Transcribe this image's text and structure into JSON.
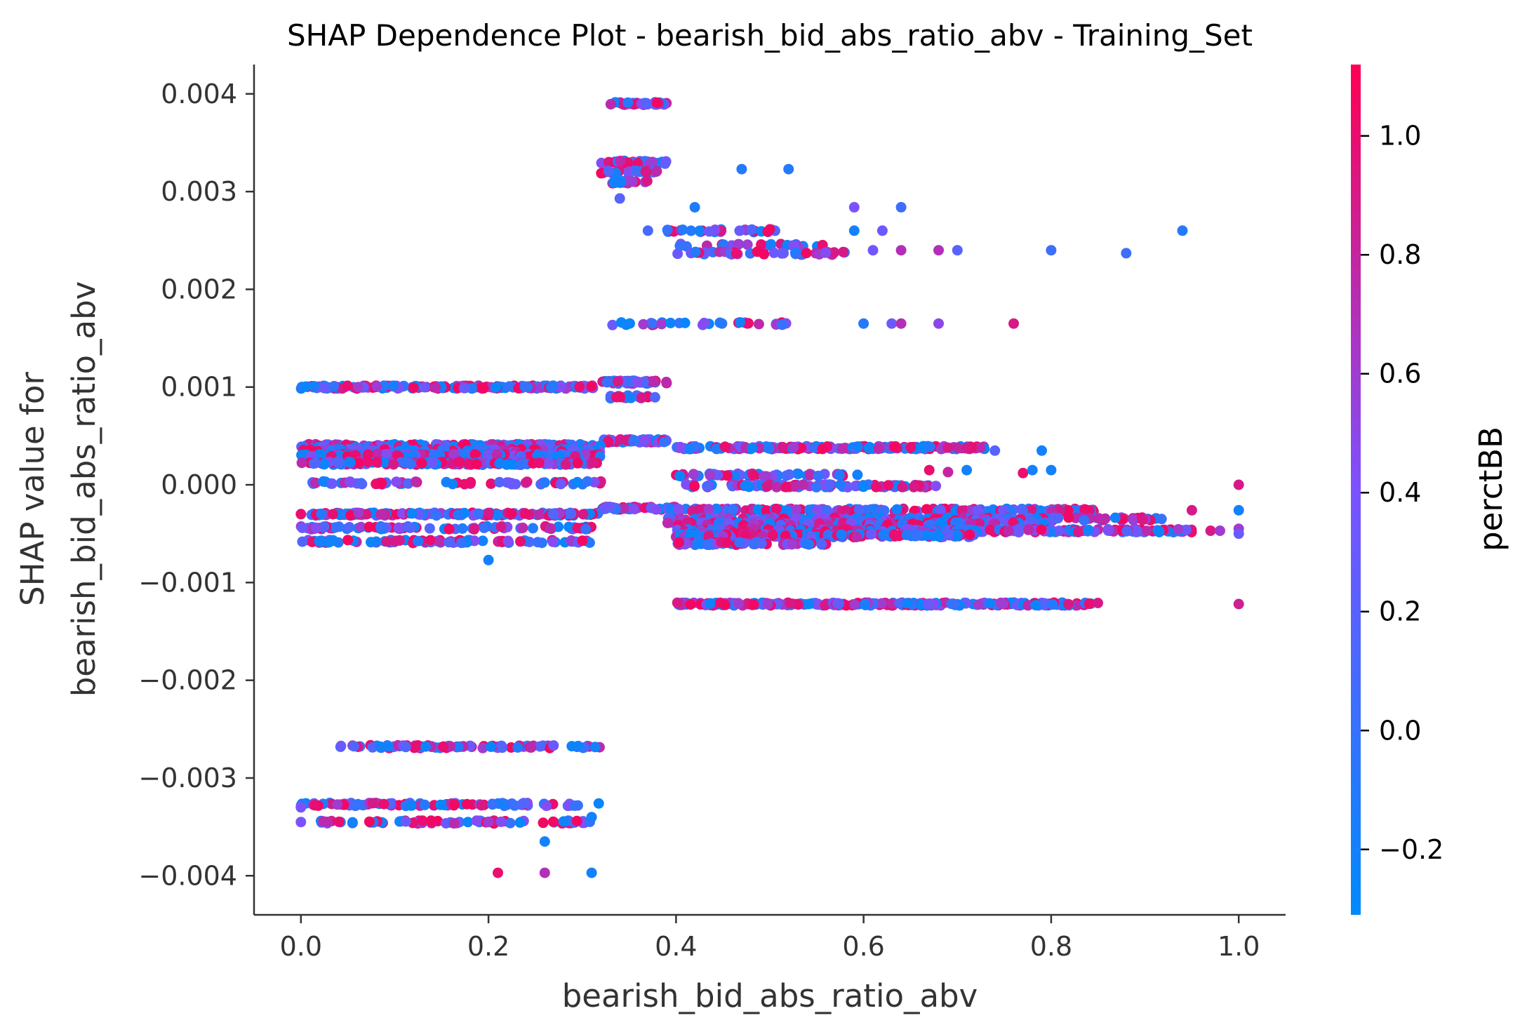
{
  "chart_data": {
    "type": "scatter",
    "title": "SHAP Dependence Plot - bearish_bid_abs_ratio_abv - Training_Set",
    "xlabel": "bearish_bid_abs_ratio_abv",
    "ylabel_lines": [
      "SHAP value for",
      "bearish_bid_abs_ratio_abv"
    ],
    "xlim": [
      -0.05,
      1.05
    ],
    "ylim": [
      -0.0044,
      0.0043
    ],
    "x_ticks": [
      0.0,
      0.2,
      0.4,
      0.6,
      0.8,
      1.0
    ],
    "x_tick_labels": [
      "0.0",
      "0.2",
      "0.4",
      "0.6",
      "0.8",
      "1.0"
    ],
    "y_ticks": [
      0.004,
      0.003,
      0.002,
      0.001,
      0.0,
      -0.001,
      -0.002,
      -0.003,
      -0.004
    ],
    "y_tick_labels": [
      "0.004",
      "0.003",
      "0.002",
      "0.001",
      "0.000",
      "−0.001",
      "−0.002",
      "−0.003",
      "−0.004"
    ],
    "colorbar": {
      "label": "perctBB",
      "range": [
        -0.31,
        1.12
      ],
      "ticks": [
        1.0,
        0.8,
        0.6,
        0.4,
        0.2,
        0.0,
        -0.2
      ],
      "tick_labels": [
        "1.0",
        "0.8",
        "0.6",
        "0.4",
        "0.2",
        "0.0",
        "−0.2"
      ],
      "color_low": "#008afb",
      "color_mid": "#7c52ff",
      "color_high": "#ff0052"
    },
    "grid": false,
    "legend": "colorbar-right",
    "bands": [
      {
        "x_start": 0.33,
        "x_end": 0.39,
        "y": 0.0039,
        "count": 40
      },
      {
        "x_start": 0.32,
        "x_end": 0.39,
        "y": 0.0033,
        "count": 40
      },
      {
        "x_start": 0.32,
        "x_end": 0.38,
        "y": 0.0032,
        "count": 30
      },
      {
        "x_start": 0.33,
        "x_end": 0.37,
        "y": 0.0031,
        "count": 14
      },
      {
        "x_start": 0.39,
        "x_end": 0.51,
        "y": 0.0026,
        "count": 30
      },
      {
        "x_start": 0.4,
        "x_end": 0.56,
        "y": 0.00245,
        "count": 28
      },
      {
        "x_start": 0.4,
        "x_end": 0.58,
        "y": 0.00237,
        "count": 40
      },
      {
        "x_start": 0.33,
        "x_end": 0.53,
        "y": 0.00165,
        "count": 30
      },
      {
        "x_start": 0.0,
        "x_end": 0.32,
        "y": 0.001,
        "count": 190
      },
      {
        "x_start": 0.32,
        "x_end": 0.39,
        "y": 0.00105,
        "count": 45
      },
      {
        "x_start": 0.33,
        "x_end": 0.38,
        "y": 0.0009,
        "count": 20
      },
      {
        "x_start": 0.32,
        "x_end": 0.39,
        "y": 0.00045,
        "count": 60
      },
      {
        "x_start": 0.0,
        "x_end": 0.32,
        "y": 0.0004,
        "count": 160
      },
      {
        "x_start": 0.0,
        "x_end": 0.32,
        "y": 0.00035,
        "count": 160
      },
      {
        "x_start": 0.0,
        "x_end": 0.32,
        "y": 0.0003,
        "count": 160
      },
      {
        "x_start": 0.0,
        "x_end": 0.32,
        "y": 0.00022,
        "count": 140
      },
      {
        "x_start": 0.4,
        "x_end": 0.73,
        "y": 0.00038,
        "count": 170
      },
      {
        "x_start": 0.01,
        "x_end": 0.32,
        "y": 2e-05,
        "count": 60
      },
      {
        "x_start": 0.4,
        "x_end": 0.6,
        "y": 0.0001,
        "count": 50
      },
      {
        "x_start": 0.41,
        "x_end": 0.68,
        "y": -1e-05,
        "count": 90
      },
      {
        "x_start": 0.32,
        "x_end": 0.4,
        "y": -0.00024,
        "count": 50
      },
      {
        "x_start": 0.01,
        "x_end": 0.32,
        "y": -0.0003,
        "count": 150
      },
      {
        "x_start": 0.0,
        "x_end": 0.31,
        "y": -0.00044,
        "count": 80
      },
      {
        "x_start": 0.0,
        "x_end": 0.31,
        "y": -0.00058,
        "count": 90
      },
      {
        "x_start": 0.39,
        "x_end": 0.85,
        "y": -0.00026,
        "count": 200
      },
      {
        "x_start": 0.39,
        "x_end": 0.92,
        "y": -0.00035,
        "count": 200
      },
      {
        "x_start": 0.39,
        "x_end": 0.8,
        "y": -0.0004,
        "count": 200
      },
      {
        "x_start": 0.4,
        "x_end": 0.95,
        "y": -0.00047,
        "count": 220
      },
      {
        "x_start": 0.4,
        "x_end": 0.72,
        "y": -0.00052,
        "count": 150
      },
      {
        "x_start": 0.4,
        "x_end": 0.56,
        "y": -0.0006,
        "count": 60
      },
      {
        "x_start": 0.4,
        "x_end": 0.85,
        "y": -0.00122,
        "count": 260
      },
      {
        "x_start": 0.04,
        "x_end": 0.32,
        "y": -0.00268,
        "count": 90
      },
      {
        "x_start": 0.0,
        "x_end": 0.32,
        "y": -0.00327,
        "count": 90
      },
      {
        "x_start": 0.02,
        "x_end": 0.31,
        "y": -0.00345,
        "count": 70
      }
    ],
    "outliers": [
      {
        "x": 0.34,
        "y": 0.00293,
        "c": 0.2
      },
      {
        "x": 0.47,
        "y": 0.00323,
        "c": -0.1
      },
      {
        "x": 0.52,
        "y": 0.00323,
        "c": -0.1
      },
      {
        "x": 0.42,
        "y": 0.00284,
        "c": -0.15
      },
      {
        "x": 0.59,
        "y": 0.00284,
        "c": 0.4
      },
      {
        "x": 0.64,
        "y": 0.00284,
        "c": 0.05
      },
      {
        "x": 0.37,
        "y": 0.0026,
        "c": 0.1
      },
      {
        "x": 0.59,
        "y": 0.0026,
        "c": -0.2
      },
      {
        "x": 0.62,
        "y": 0.0026,
        "c": 0.3
      },
      {
        "x": 0.94,
        "y": 0.0026,
        "c": -0.1
      },
      {
        "x": 0.61,
        "y": 0.0024,
        "c": 0.35
      },
      {
        "x": 0.64,
        "y": 0.0024,
        "c": 0.7
      },
      {
        "x": 0.68,
        "y": 0.0024,
        "c": 0.7
      },
      {
        "x": 0.7,
        "y": 0.0024,
        "c": 0.2
      },
      {
        "x": 0.8,
        "y": 0.0024,
        "c": 0.05
      },
      {
        "x": 0.88,
        "y": 0.00237,
        "c": 0.05
      },
      {
        "x": 0.63,
        "y": 0.00165,
        "c": 0.3
      },
      {
        "x": 0.64,
        "y": 0.00165,
        "c": 0.7
      },
      {
        "x": 0.68,
        "y": 0.00165,
        "c": 0.5
      },
      {
        "x": 0.76,
        "y": 0.00165,
        "c": 0.9
      },
      {
        "x": 0.6,
        "y": 0.00165,
        "c": -0.1
      },
      {
        "x": 0.69,
        "y": 0.00038,
        "c": 0.9
      },
      {
        "x": 0.7,
        "y": 0.00038,
        "c": 0.8
      },
      {
        "x": 0.71,
        "y": 0.00038,
        "c": 0.9
      },
      {
        "x": 0.74,
        "y": 0.00035,
        "c": 0.2
      },
      {
        "x": 0.79,
        "y": 0.00035,
        "c": -0.2
      },
      {
        "x": 0.67,
        "y": 0.00015,
        "c": 1.0
      },
      {
        "x": 0.71,
        "y": 0.00015,
        "c": -0.2
      },
      {
        "x": 0.77,
        "y": 0.00012,
        "c": 1.0
      },
      {
        "x": 0.78,
        "y": 0.00015,
        "c": -0.2
      },
      {
        "x": 0.8,
        "y": 0.00015,
        "c": -0.2
      },
      {
        "x": 0.69,
        "y": 0.00013,
        "c": 0.8
      },
      {
        "x": 0.2,
        "y": -0.00077,
        "c": -0.2
      },
      {
        "x": 0.0,
        "y": -0.0003,
        "c": 1.0
      },
      {
        "x": 1.0,
        "y": -0.0,
        "c": 0.9
      },
      {
        "x": 1.0,
        "y": -0.00026,
        "c": -0.2
      },
      {
        "x": 1.0,
        "y": -0.00045,
        "c": 0.6
      },
      {
        "x": 1.0,
        "y": -0.0005,
        "c": 0.3
      },
      {
        "x": 1.0,
        "y": -0.00122,
        "c": 0.85
      },
      {
        "x": 0.97,
        "y": -0.00047,
        "c": 0.9
      },
      {
        "x": 0.98,
        "y": -0.00047,
        "c": 0.6
      },
      {
        "x": 0.95,
        "y": -0.00026,
        "c": 0.9
      },
      {
        "x": 0.26,
        "y": -0.00365,
        "c": -0.2
      },
      {
        "x": 0.21,
        "y": -0.00397,
        "c": 1.0
      },
      {
        "x": 0.26,
        "y": -0.00397,
        "c": 0.7
      },
      {
        "x": 0.31,
        "y": -0.00397,
        "c": -0.2
      },
      {
        "x": 0.0,
        "y": -0.00345,
        "c": 0.4
      },
      {
        "x": 0.0,
        "y": -0.0033,
        "c": 0.4
      },
      {
        "x": 0.31,
        "y": -0.0034,
        "c": -0.2
      }
    ]
  }
}
